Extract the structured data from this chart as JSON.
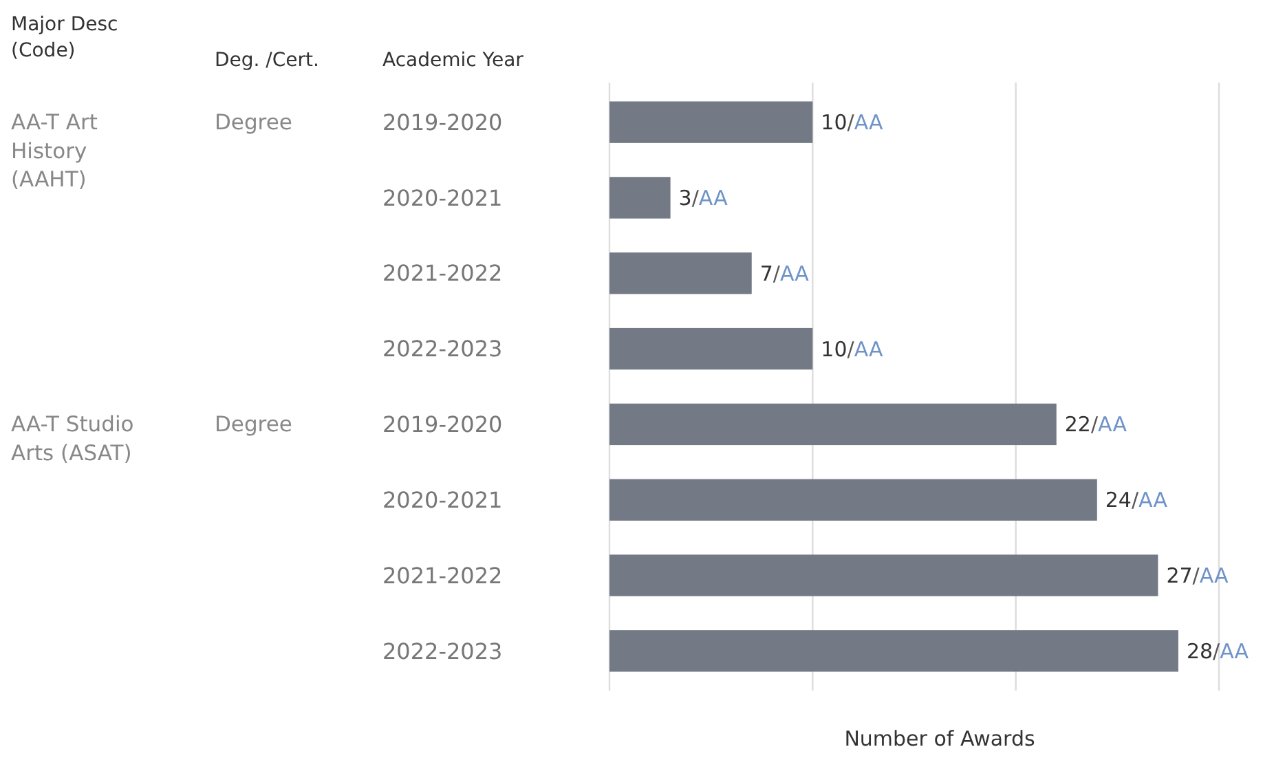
{
  "chart_data": {
    "type": "bar",
    "orientation": "horizontal",
    "xlabel": "Number of Awards",
    "categories": [
      "2019-2020",
      "2020-2021",
      "2021-2022",
      "2022-2023",
      "2019-2020",
      "2020-2021",
      "2021-2022",
      "2022-2023"
    ],
    "values": [
      10,
      3,
      7,
      10,
      22,
      24,
      27,
      28
    ],
    "color": "#737a86",
    "value_labels": [
      "10/AA",
      "3/AA",
      "7/AA",
      "10/AA",
      "22/AA",
      "24/AA",
      "27/AA",
      "28/AA"
    ],
    "xlim": [
      0,
      30
    ],
    "xticks": [
      {
        "value": 0,
        "label": null
      },
      {
        "value": 10,
        "label": null
      },
      {
        "value": 20,
        "label": null
      },
      {
        "value": 30,
        "label": null
      }
    ],
    "grid": "x",
    "tick_labels": "y",
    "annotations": [
      "Major Desc (Code)",
      "Deg. /Cert.",
      "Academic Year",
      "AA-T Art History (AAHT)",
      "Degree",
      "AA-T Studio Arts (ASAT)",
      "Degree"
    ]
  }
}
